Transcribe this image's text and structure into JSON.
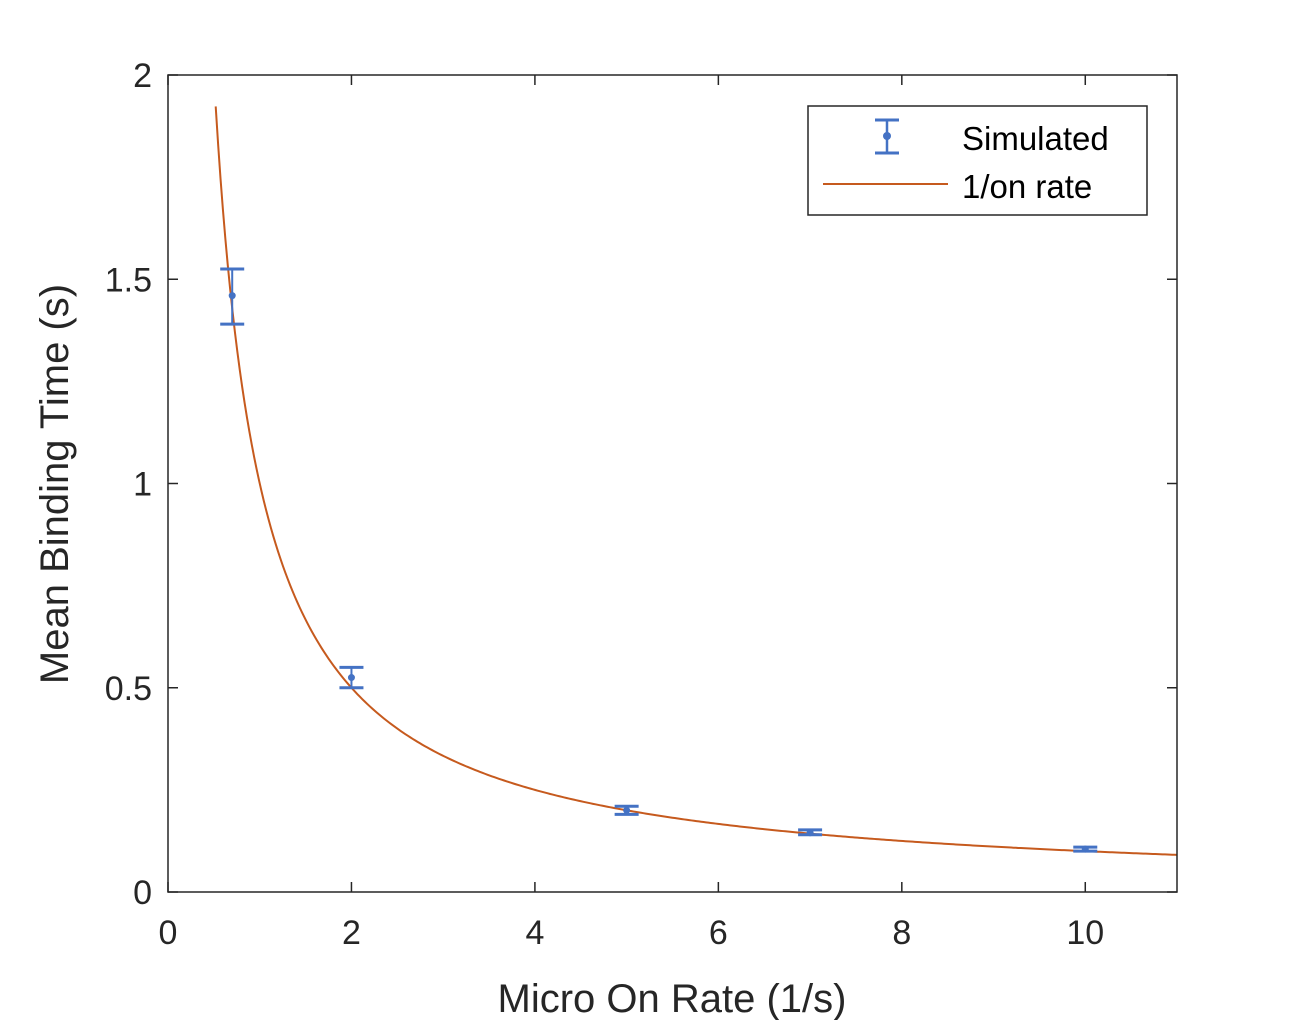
{
  "chart_data": {
    "type": "scatter",
    "xlabel": "Micro On Rate (1/s)",
    "ylabel": "Mean Binding Time (s)",
    "xlim": [
      0,
      11
    ],
    "ylim": [
      0,
      2
    ],
    "xticks": [
      "0",
      "2",
      "4",
      "6",
      "8",
      "10"
    ],
    "yticks": [
      "0",
      "0.5",
      "1",
      "1.5",
      "2"
    ],
    "grid": false,
    "legend_position": "top-right",
    "series": [
      {
        "name": "Simulated",
        "kind": "errorbar",
        "color": "#4472C4",
        "x": [
          0.7,
          2,
          5,
          7,
          10
        ],
        "y": [
          1.46,
          0.525,
          0.2,
          0.145,
          0.105
        ],
        "err_low": [
          1.39,
          0.5,
          0.19,
          0.14,
          0.1
        ],
        "err_high": [
          1.525,
          0.55,
          0.21,
          0.152,
          0.11
        ]
      },
      {
        "name": "1/on rate",
        "kind": "line",
        "color": "#C65A1E",
        "function": "1/x",
        "x_range": [
          0.52,
          11
        ]
      }
    ]
  }
}
